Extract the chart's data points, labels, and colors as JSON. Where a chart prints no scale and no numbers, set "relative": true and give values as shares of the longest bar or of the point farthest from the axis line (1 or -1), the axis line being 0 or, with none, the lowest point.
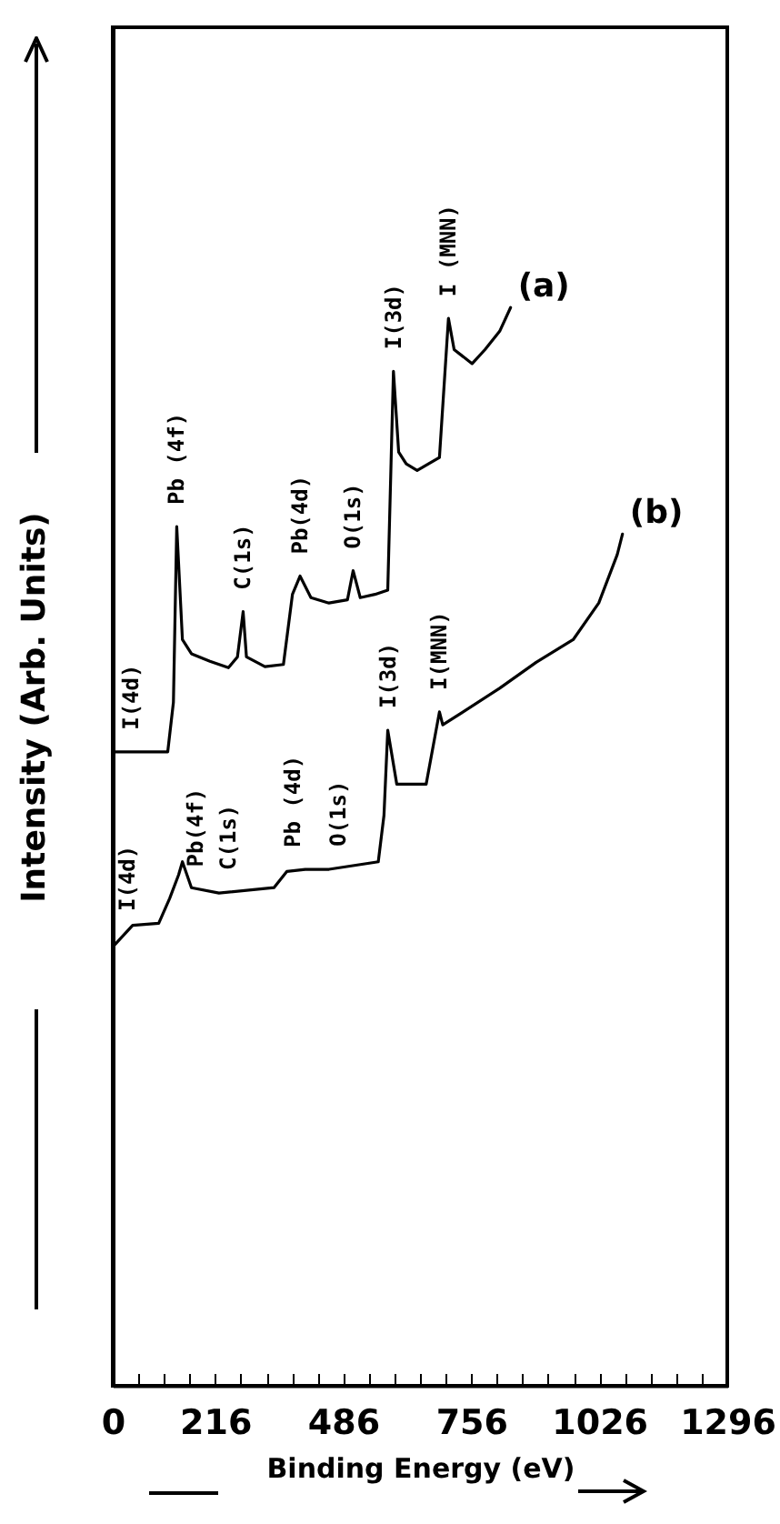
{
  "chart_data": {
    "type": "line",
    "relative": true,
    "xlabel": "Binding Energy (eV)",
    "ylabel": "Intensity (Arb. Units)",
    "xlim": [
      0,
      1296
    ],
    "xticks": [
      0,
      {
        "value": 54,
        "label": null
      },
      {
        "value": 108,
        "label": null
      },
      {
        "value": 162,
        "label": null
      },
      216,
      {
        "value": 270,
        "label": null
      },
      {
        "value": 324,
        "label": null
      },
      {
        "value": 378,
        "label": null
      },
      {
        "value": 432,
        "label": null
      },
      486,
      {
        "value": 540,
        "label": null
      },
      {
        "value": 594,
        "label": null
      },
      {
        "value": 648,
        "label": null
      },
      {
        "value": 702,
        "label": null
      },
      756,
      {
        "value": 810,
        "label": null
      },
      {
        "value": 864,
        "label": null
      },
      {
        "value": 918,
        "label": null
      },
      {
        "value": 972,
        "label": null
      },
      1026,
      {
        "value": 1080,
        "label": null
      },
      {
        "value": 1134,
        "label": null
      },
      {
        "value": 1188,
        "label": null
      },
      {
        "value": 1242,
        "label": null
      },
      1296
    ],
    "tick_labels": "x",
    "grid": false,
    "marker": "none",
    "line_style": "solid",
    "series": [
      {
        "name": "(a)",
        "color": "#000000",
        "x": [
          0,
          116,
          128,
          135,
          147,
          166,
          205,
          244,
          263,
          275,
          282,
          321,
          360,
          379,
          395,
          418,
          456,
          495,
          507,
          522,
          553,
          580,
          592,
          603,
          619,
          642,
          689,
          708,
          720,
          758,
          785,
          816,
          839
        ],
        "values": [
          0.588,
          0.588,
          0.634,
          0.797,
          0.692,
          0.679,
          0.672,
          0.666,
          0.676,
          0.718,
          0.676,
          0.667,
          0.669,
          0.734,
          0.751,
          0.731,
          0.726,
          0.729,
          0.756,
          0.731,
          0.734,
          0.738,
          0.941,
          0.866,
          0.855,
          0.849,
          0.861,
          0.99,
          0.961,
          0.948,
          0.961,
          0.978,
          1
        ]
      },
      {
        "name": "(b)",
        "color": "#000000",
        "x": [
          0,
          42,
          97,
          120,
          139,
          147,
          166,
          224,
          340,
          367,
          406,
          456,
          560,
          572,
          580,
          599,
          661,
          689,
          696,
          739,
          816,
          893,
          971,
          1025,
          1064,
          1075
        ],
        "values": [
          0.407,
          0.427,
          0.429,
          0.452,
          0.474,
          0.486,
          0.462,
          0.457,
          0.462,
          0.477,
          0.479,
          0.479,
          0.486,
          0.529,
          0.608,
          0.558,
          0.558,
          0.625,
          0.613,
          0.625,
          0.647,
          0.671,
          0.692,
          0.726,
          0.771,
          0.79
        ]
      }
    ],
    "annotations": [
      {
        "text": "I(4d)",
        "x": 39,
        "y": 0.588
      },
      {
        "text": "Pb (4f)",
        "x": 135,
        "y": 0.797
      },
      {
        "text": "C(1s)",
        "x": 275,
        "y": 0.718
      },
      {
        "text": "Pb(4d)",
        "x": 395,
        "y": 0.751
      },
      {
        "text": "O(1s)",
        "x": 507,
        "y": 0.756
      },
      {
        "text": "I(3d)",
        "x": 592,
        "y": 0.941
      },
      {
        "text": "I (MNN)",
        "x": 708,
        "y": 0.99
      },
      {
        "text": "I(4d)",
        "x": 31,
        "y": 0.42
      },
      {
        "text": "Pb(4f)",
        "x": 174,
        "y": 0.461
      },
      {
        "text": "C(1s)",
        "x": 244,
        "y": 0.458
      },
      {
        "text": "Pb (4d)",
        "x": 379,
        "y": 0.479
      },
      {
        "text": "O(1s)",
        "x": 476,
        "y": 0.48
      },
      {
        "text": "I(3d)",
        "x": 580,
        "y": 0.608
      },
      {
        "text": "I(MNN)",
        "x": 689,
        "y": 0.625
      }
    ]
  }
}
